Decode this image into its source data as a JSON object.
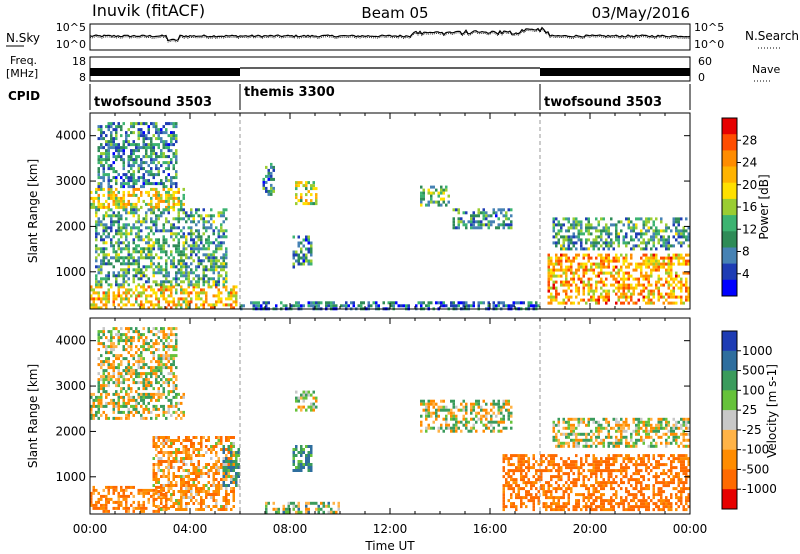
{
  "header": {
    "station": "Inuvik (fitACF)",
    "beam": "Beam 05",
    "date": "03/May/2016"
  },
  "noise_panel": {
    "left_label": "N.Sky",
    "left_ticks": [
      "10^5",
      "10^0"
    ],
    "right_label": "N.Search",
    "right_ticks": [
      "10^5",
      "10^0"
    ]
  },
  "freq_panel": {
    "left_label_1": "Freq.",
    "left_label_2": "[MHz]",
    "left_ticks": [
      "18",
      "8"
    ],
    "right_label": "Nave",
    "right_ticks": [
      "60",
      "0"
    ]
  },
  "cpid": {
    "label": "CPID",
    "modes": [
      {
        "name": "twofsound 3503",
        "start_h": 0,
        "end_h": 6
      },
      {
        "name": "themis 3300",
        "start_h": 6,
        "end_h": 18
      },
      {
        "name": "twofsound 3503",
        "start_h": 18,
        "end_h": 24
      }
    ]
  },
  "power_panel": {
    "ylabel": "Slant Range [km]",
    "cbar_label": "Power [dB]",
    "cbar_ticks": [
      "28",
      "24",
      "20",
      "16",
      "12",
      "8",
      "4"
    ],
    "cbar_colors": [
      "#e60000",
      "#ff4d00",
      "#ff8c00",
      "#ffb300",
      "#ffe000",
      "#9acd32",
      "#3cb371",
      "#2e8b57",
      "#4682b4",
      "#1e3cb4",
      "#0000ff"
    ]
  },
  "velocity_panel": {
    "ylabel": "Slant Range [km]",
    "cbar_label": "Velocity [m s-1]",
    "cbar_ticks": [
      "1000",
      "500",
      "100",
      "25",
      "-25",
      "-100",
      "-500",
      "-1000"
    ],
    "cbar_colors": [
      "#1e3cb4",
      "#2e6e9e",
      "#3a9b5c",
      "#66c23a",
      "#c8c8c8",
      "#ffb347",
      "#ff8c00",
      "#ff6a00",
      "#e60000"
    ]
  },
  "x_axis": {
    "label": "Time UT",
    "ticks": [
      "00:00",
      "04:00",
      "08:00",
      "12:00",
      "16:00",
      "20:00",
      "00:00"
    ]
  },
  "y_axis": {
    "ticks": [
      "1000",
      "2000",
      "3000",
      "4000"
    ]
  },
  "chart_data": [
    {
      "type": "heatmap",
      "title": "Power [dB]",
      "xlabel": "Time UT",
      "ylabel": "Slant Range [km]",
      "xlim": [
        0,
        24
      ],
      "ylim": [
        180,
        4500
      ],
      "clim": [
        0,
        30
      ],
      "regions": [
        {
          "t0": 0.0,
          "t1": 3.8,
          "r0": 2450,
          "r1": 2850,
          "level": 18
        },
        {
          "t0": 0.0,
          "t1": 5.9,
          "r0": 200,
          "r1": 700,
          "level": 20
        },
        {
          "t0": 0.2,
          "t1": 5.5,
          "r0": 700,
          "r1": 2400,
          "level": 10
        },
        {
          "t0": 0.3,
          "t1": 3.5,
          "r0": 2900,
          "r1": 4300,
          "level": 8
        },
        {
          "t0": 6.9,
          "t1": 7.4,
          "r0": 2700,
          "r1": 3400,
          "level": 8
        },
        {
          "t0": 8.2,
          "t1": 9.1,
          "r0": 2500,
          "r1": 3000,
          "level": 16
        },
        {
          "t0": 8.1,
          "t1": 8.9,
          "r0": 1100,
          "r1": 1800,
          "level": 8
        },
        {
          "t0": 13.2,
          "t1": 14.3,
          "r0": 2450,
          "r1": 2900,
          "level": 12
        },
        {
          "t0": 14.5,
          "t1": 16.8,
          "r0": 2000,
          "r1": 2400,
          "level": 8
        },
        {
          "t0": 18.3,
          "t1": 24.0,
          "r0": 300,
          "r1": 1400,
          "level": 22
        },
        {
          "t0": 18.5,
          "t1": 24.0,
          "r0": 1500,
          "r1": 2200,
          "level": 10
        },
        {
          "t0": 6.0,
          "t1": 18.0,
          "r0": 180,
          "r1": 350,
          "level": 6
        }
      ]
    },
    {
      "type": "heatmap",
      "title": "Velocity [m s-1]",
      "xlabel": "Time UT",
      "ylabel": "Slant Range [km]",
      "xlim": [
        0,
        24
      ],
      "ylim": [
        180,
        4500
      ],
      "clim": [
        -1000,
        1000
      ],
      "regions": [
        {
          "t0": 0.0,
          "t1": 3.8,
          "r0": 2300,
          "r1": 2850,
          "level": 0
        },
        {
          "t0": 0.0,
          "t1": 3.2,
          "r0": 250,
          "r1": 800,
          "level": -300
        },
        {
          "t0": 2.5,
          "t1": 5.8,
          "r0": 300,
          "r1": 1900,
          "level": -200
        },
        {
          "t0": 5.3,
          "t1": 6.0,
          "r0": 800,
          "r1": 1700,
          "level": 200
        },
        {
          "t0": 0.3,
          "t1": 3.5,
          "r0": 2900,
          "r1": 4300,
          "level": 0
        },
        {
          "t0": 8.2,
          "t1": 9.1,
          "r0": 2500,
          "r1": 2900,
          "level": 0
        },
        {
          "t0": 8.1,
          "t1": 8.9,
          "r0": 1150,
          "r1": 1700,
          "level": 300
        },
        {
          "t0": 7.0,
          "t1": 10.0,
          "r0": 200,
          "r1": 450,
          "level": 100
        },
        {
          "t0": 13.2,
          "t1": 16.8,
          "r0": 2000,
          "r1": 2700,
          "level": 0
        },
        {
          "t0": 16.5,
          "t1": 24.0,
          "r0": 300,
          "r1": 1500,
          "level": -400
        },
        {
          "t0": 18.5,
          "t1": 24.0,
          "r0": 1700,
          "r1": 2300,
          "level": 0
        }
      ]
    }
  ]
}
